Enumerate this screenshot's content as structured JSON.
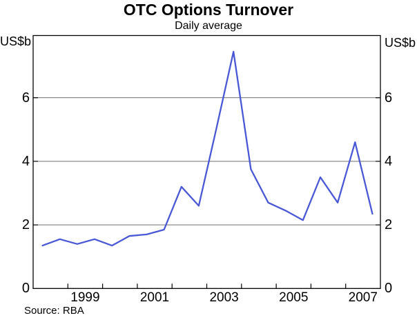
{
  "header": {
    "title": "OTC Options Turnover",
    "subtitle": "Daily average"
  },
  "y_axis": {
    "unit_left": "US$b",
    "unit_right": "US$b",
    "tick_labels": [
      "0",
      "2",
      "4",
      "6"
    ]
  },
  "x_axis": {
    "labels": [
      "1999",
      "2001",
      "2003",
      "2005",
      "2007"
    ]
  },
  "footer": {
    "source": "Source: RBA"
  },
  "chart_data": {
    "type": "line",
    "title": "OTC Options Turnover",
    "subtitle": "Daily average",
    "xlabel": "",
    "ylabel": "US$b",
    "ylim": [
      0,
      8
    ],
    "xlim_years": [
      1998,
      2008
    ],
    "grid": "horizontal",
    "legend_position": "none",
    "y_gridlines": [
      2,
      4,
      6
    ],
    "y_tick_values": [
      0,
      2,
      4,
      6
    ],
    "x_tick_years": [
      1999,
      2000,
      2001,
      2002,
      2003,
      2004,
      2005,
      2006,
      2007
    ],
    "x_label_years": [
      1999,
      2001,
      2003,
      2005,
      2007
    ],
    "frame_color": "#000000",
    "gridline_color": "#5a5a5a",
    "series": [
      {
        "name": "OTC options turnover, daily average (US$b)",
        "color": "#4a58d8",
        "categories": [
          "1998 H1",
          "1998 H2",
          "1999 H1",
          "1999 H2",
          "2000 H1",
          "2000 H2",
          "2001 H1",
          "2001 H2",
          "2002 H1",
          "2002 H2",
          "2003 H1",
          "2003 H2",
          "2004 H1",
          "2004 H2",
          "2005 H1",
          "2005 H2",
          "2006 H1",
          "2006 H2",
          "2007 H1",
          "2007 H2"
        ],
        "x_years": [
          1998.27,
          1998.77,
          1999.27,
          1999.77,
          2000.27,
          2000.77,
          2001.27,
          2001.77,
          2002.27,
          2002.77,
          2003.27,
          2003.77,
          2004.27,
          2004.77,
          2005.27,
          2005.77,
          2006.27,
          2006.77,
          2007.27,
          2007.77
        ],
        "values": [
          1.35,
          1.55,
          1.4,
          1.55,
          1.35,
          1.65,
          1.7,
          1.85,
          3.2,
          2.6,
          5.0,
          7.45,
          3.75,
          2.7,
          2.45,
          2.15,
          3.5,
          2.7,
          4.6,
          2.35
        ]
      }
    ]
  }
}
